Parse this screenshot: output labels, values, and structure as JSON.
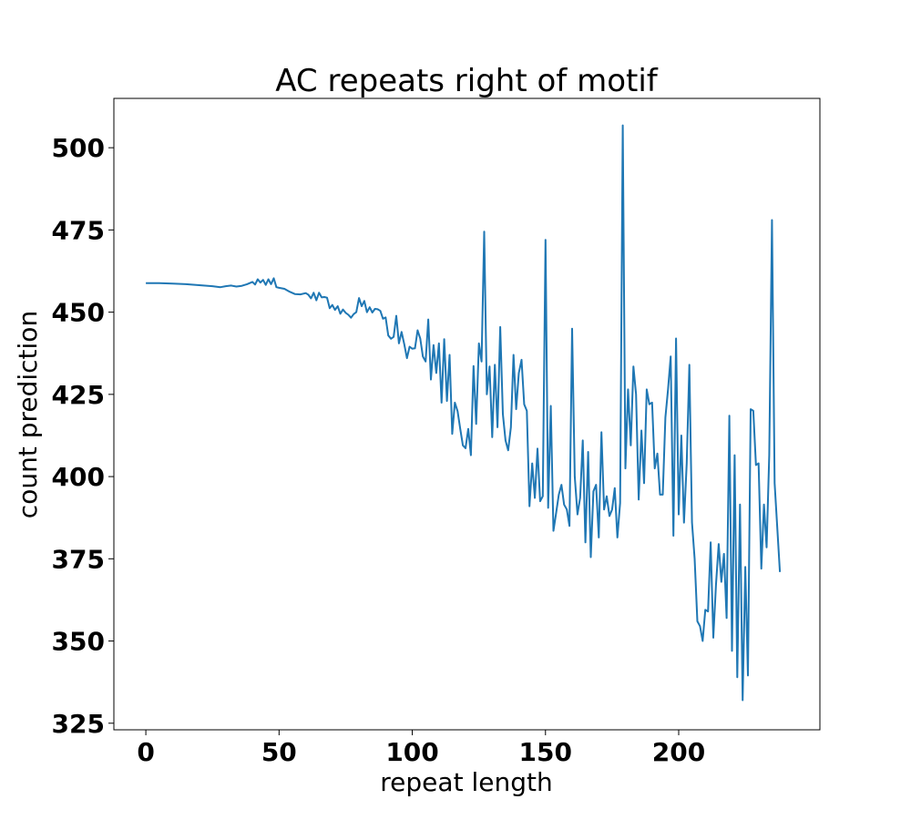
{
  "chart_data": {
    "type": "line",
    "title": "AC repeats right of motif",
    "xlabel": "repeat length",
    "ylabel": "count prediction",
    "xlim": [
      -12,
      253
    ],
    "ylim": [
      323,
      515
    ],
    "xticks": [
      0,
      50,
      100,
      150,
      200
    ],
    "yticks": [
      325,
      350,
      375,
      400,
      425,
      450,
      475,
      500
    ],
    "grid": false,
    "legend": "none",
    "color": "#1f77b4",
    "series": [
      {
        "values": [
          [
            0,
            458.8
          ],
          [
            5,
            458.8
          ],
          [
            10,
            458.7
          ],
          [
            15,
            458.5
          ],
          [
            20,
            458.2
          ],
          [
            25,
            457.9
          ],
          [
            28,
            457.6
          ],
          [
            30,
            457.9
          ],
          [
            32,
            458.1
          ],
          [
            34,
            457.8
          ],
          [
            36,
            458.0
          ],
          [
            38,
            458.5
          ],
          [
            40,
            459.2
          ],
          [
            41,
            458.4
          ],
          [
            42,
            460.0
          ],
          [
            43,
            459.0
          ],
          [
            44,
            459.8
          ],
          [
            45,
            458.3
          ],
          [
            46,
            460.0
          ],
          [
            47,
            458.5
          ],
          [
            48,
            460.3
          ],
          [
            49,
            457.6
          ],
          [
            50,
            457.4
          ],
          [
            52,
            457.1
          ],
          [
            54,
            456.2
          ],
          [
            56,
            455.5
          ],
          [
            58,
            455.4
          ],
          [
            60,
            455.8
          ],
          [
            61,
            455.3
          ],
          [
            62,
            454.2
          ],
          [
            63,
            455.9
          ],
          [
            64,
            453.6
          ],
          [
            65,
            455.9
          ],
          [
            66,
            454.5
          ],
          [
            67,
            454.6
          ],
          [
            68,
            454.4
          ],
          [
            69,
            451.2
          ],
          [
            70,
            452.2
          ],
          [
            71,
            450.7
          ],
          [
            72,
            451.8
          ],
          [
            73,
            449.5
          ],
          [
            74,
            450.8
          ],
          [
            75,
            449.8
          ],
          [
            76,
            449.2
          ],
          [
            77,
            448.3
          ],
          [
            78,
            449.4
          ],
          [
            79,
            450.0
          ],
          [
            80,
            454.3
          ],
          [
            81,
            451.8
          ],
          [
            82,
            453.4
          ],
          [
            83,
            450.0
          ],
          [
            84,
            451.5
          ],
          [
            85,
            449.9
          ],
          [
            86,
            451.0
          ],
          [
            87,
            450.9
          ],
          [
            88,
            450.4
          ],
          [
            89,
            448.0
          ],
          [
            90,
            448.4
          ],
          [
            91,
            442.9
          ],
          [
            92,
            441.9
          ],
          [
            93,
            442.5
          ],
          [
            94,
            448.9
          ],
          [
            95,
            440.5
          ],
          [
            96,
            444.0
          ],
          [
            97,
            440.2
          ],
          [
            98,
            436.0
          ],
          [
            99,
            439.5
          ],
          [
            100,
            438.9
          ],
          [
            101,
            439.0
          ],
          [
            102,
            444.5
          ],
          [
            103,
            442.0
          ],
          [
            104,
            436.5
          ],
          [
            105,
            435.0
          ],
          [
            106,
            447.8
          ],
          [
            107,
            429.5
          ],
          [
            108,
            440.0
          ],
          [
            109,
            431.5
          ],
          [
            110,
            440.5
          ],
          [
            111,
            422.5
          ],
          [
            112,
            441.8
          ],
          [
            113,
            423.0
          ],
          [
            114,
            437.0
          ],
          [
            115,
            413.0
          ],
          [
            116,
            422.5
          ],
          [
            117,
            419.9
          ],
          [
            118,
            414.5
          ],
          [
            119,
            409.5
          ],
          [
            120,
            408.6
          ],
          [
            121,
            414.5
          ],
          [
            122,
            406.5
          ],
          [
            123,
            433.6
          ],
          [
            124,
            416.0
          ],
          [
            125,
            440.5
          ],
          [
            126,
            435.0
          ],
          [
            127,
            474.5
          ],
          [
            128,
            425.0
          ],
          [
            129,
            433.5
          ],
          [
            130,
            412.0
          ],
          [
            131,
            434.0
          ],
          [
            132,
            415.0
          ],
          [
            133,
            445.5
          ],
          [
            134,
            419.0
          ],
          [
            135,
            411.0
          ],
          [
            136,
            408.0
          ],
          [
            137,
            415.0
          ],
          [
            138,
            437.0
          ],
          [
            139,
            420.5
          ],
          [
            140,
            431.5
          ],
          [
            141,
            435.5
          ],
          [
            142,
            422.0
          ],
          [
            143,
            420.0
          ],
          [
            144,
            391.0
          ],
          [
            145,
            404.0
          ],
          [
            146,
            393.5
          ],
          [
            147,
            408.5
          ],
          [
            148,
            392.5
          ],
          [
            149,
            394.0
          ],
          [
            150,
            472.0
          ],
          [
            151,
            390.5
          ],
          [
            152,
            421.5
          ],
          [
            153,
            383.5
          ],
          [
            154,
            389.0
          ],
          [
            155,
            394.5
          ],
          [
            156,
            397.5
          ],
          [
            157,
            391.5
          ],
          [
            158,
            390.0
          ],
          [
            159,
            385.0
          ],
          [
            160,
            445.0
          ],
          [
            161,
            400.0
          ],
          [
            162,
            388.5
          ],
          [
            163,
            393.5
          ],
          [
            164,
            411.0
          ],
          [
            165,
            380.0
          ],
          [
            166,
            407.5
          ],
          [
            167,
            375.5
          ],
          [
            168,
            395.5
          ],
          [
            169,
            397.5
          ],
          [
            170,
            381.5
          ],
          [
            171,
            413.5
          ],
          [
            172,
            390.0
          ],
          [
            173,
            394.0
          ],
          [
            174,
            388.0
          ],
          [
            175,
            390.0
          ],
          [
            176,
            396.5
          ],
          [
            177,
            381.5
          ],
          [
            178,
            392.0
          ],
          [
            179,
            506.8
          ],
          [
            180,
            402.5
          ],
          [
            181,
            426.5
          ],
          [
            182,
            409.5
          ],
          [
            183,
            433.5
          ],
          [
            184,
            425.0
          ],
          [
            185,
            393.0
          ],
          [
            186,
            414.0
          ],
          [
            187,
            398.0
          ],
          [
            188,
            426.5
          ],
          [
            189,
            422.0
          ],
          [
            190,
            422.5
          ],
          [
            191,
            402.5
          ],
          [
            192,
            407.0
          ],
          [
            193,
            394.5
          ],
          [
            194,
            394.5
          ],
          [
            195,
            418.0
          ],
          [
            196,
            426.5
          ],
          [
            197,
            436.5
          ],
          [
            198,
            382.0
          ],
          [
            199,
            442.0
          ],
          [
            200,
            388.5
          ],
          [
            201,
            412.5
          ],
          [
            202,
            386.0
          ],
          [
            203,
            404.0
          ],
          [
            204,
            434.0
          ],
          [
            205,
            386.0
          ],
          [
            206,
            375.0
          ],
          [
            207,
            356.0
          ],
          [
            208,
            354.5
          ],
          [
            209,
            350.0
          ],
          [
            210,
            359.5
          ],
          [
            211,
            359.0
          ],
          [
            212,
            380.0
          ],
          [
            213,
            351.0
          ],
          [
            214,
            367.0
          ],
          [
            215,
            379.5
          ],
          [
            216,
            368.0
          ],
          [
            217,
            376.5
          ],
          [
            218,
            357.0
          ],
          [
            219,
            418.5
          ],
          [
            220,
            347.0
          ],
          [
            221,
            406.5
          ],
          [
            222,
            339.0
          ],
          [
            223,
            391.5
          ],
          [
            224,
            332.0
          ],
          [
            225,
            372.5
          ],
          [
            226,
            339.5
          ],
          [
            227,
            420.5
          ],
          [
            228,
            420.0
          ],
          [
            229,
            403.5
          ],
          [
            230,
            404.0
          ],
          [
            231,
            372.0
          ],
          [
            232,
            391.5
          ],
          [
            233,
            378.5
          ],
          [
            234,
            406.5
          ],
          [
            235,
            478.0
          ],
          [
            236,
            398.0
          ],
          [
            238,
            371.0
          ]
        ]
      }
    ]
  }
}
